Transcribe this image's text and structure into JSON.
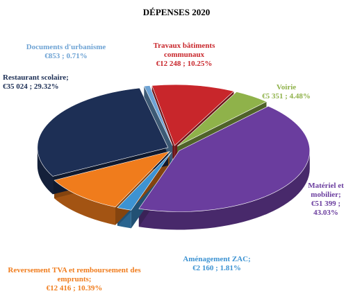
{
  "chart_data": {
    "type": "pie",
    "title": "DÉPENSES 2020",
    "categories": [
      "Travaux bâtiments communaux",
      "Voirie",
      "Matériel et mobilier;",
      "Aménagement ZAC;",
      "Reversement TVA et remboursement des emprunts;",
      "Restaurant scolaire;",
      "Documents d'urbanisme"
    ],
    "values": [
      12248,
      5351,
      51399,
      2160,
      12416,
      35024,
      853
    ],
    "value_labels": [
      "€12 248 ; 10.25%",
      "€5 351 ; 4.48%",
      "€51 399 ; 43.03%",
      "€2 160 ; 1.81%",
      "€12 416 ; 10.39%",
      "€35 024 ; 29.32%",
      "€853 ; 0.71%"
    ],
    "colors": [
      "#c8262b",
      "#8fb24a",
      "#6a3d9e",
      "#3d93d2",
      "#f07c1c",
      "#1d2f55",
      "#6ea3d4"
    ]
  }
}
